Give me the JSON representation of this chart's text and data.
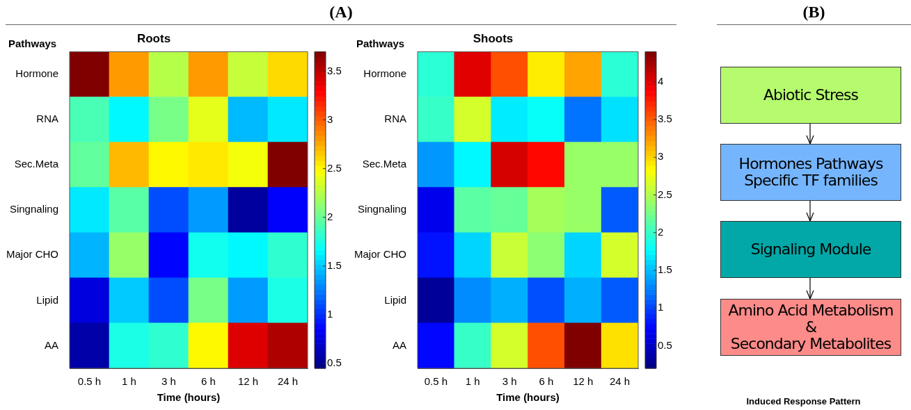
{
  "chart_data": [
    {
      "type": "heatmap",
      "title": "Roots",
      "xlabel": "Time (hours)",
      "ylabel": "Pathways",
      "annotations": [
        "(A)"
      ],
      "categories": [
        "0.5 h",
        "1 h",
        "3 h",
        "6 h",
        "12 h",
        "24 h"
      ],
      "y_categories": [
        "Hormone",
        "RNA",
        "Sec.Meta",
        "Singnaling",
        "Major CHO",
        "Lipid",
        "AA"
      ],
      "cells": [
        [
          3.7,
          2.8,
          2.25,
          2.8,
          2.3,
          2.6
        ],
        [
          1.9,
          1.65,
          2.05,
          2.4,
          1.45,
          1.6
        ],
        [
          1.98,
          2.7,
          2.5,
          2.55,
          2.45,
          3.7
        ],
        [
          1.6,
          1.95,
          1.1,
          1.35,
          0.55,
          0.85
        ],
        [
          1.43,
          2.15,
          0.87,
          1.72,
          1.65,
          1.82
        ],
        [
          0.75,
          1.5,
          1.1,
          2.05,
          1.35,
          1.75
        ],
        [
          0.58,
          1.75,
          1.82,
          2.5,
          3.4,
          3.55
        ]
      ],
      "clim": [
        0.45,
        3.7
      ],
      "cticks": [
        0.5,
        1,
        1.5,
        2,
        2.5,
        3,
        3.5
      ]
    },
    {
      "type": "heatmap",
      "title": "Shoots",
      "xlabel": "Time (hours)",
      "ylabel": "Pathways",
      "categories": [
        "0.5 h",
        "1 h",
        "3 h",
        "6 h",
        "12 h",
        "24 h"
      ],
      "y_categories": [
        "Hormone",
        "RNA",
        "Sec.Meta",
        "Singnaling",
        "Major CHO",
        "Lipid",
        "AA"
      ],
      "cells": [
        [
          1.95,
          4.0,
          3.55,
          2.9,
          3.2,
          1.95
        ],
        [
          2.0,
          2.65,
          1.7,
          1.8,
          1.2,
          1.65
        ],
        [
          1.35,
          1.75,
          4.05,
          3.85,
          2.4,
          2.4
        ],
        [
          0.65,
          2.15,
          2.2,
          2.45,
          2.4,
          1.1
        ],
        [
          0.8,
          1.6,
          2.6,
          2.35,
          1.6,
          2.65
        ],
        [
          0.3,
          1.3,
          1.45,
          1.05,
          1.45,
          1.1
        ],
        [
          0.75,
          2.0,
          2.65,
          3.55,
          4.4,
          2.95
        ]
      ],
      "clim": [
        0.2,
        4.4
      ],
      "cticks": [
        0.5,
        1,
        1.5,
        2,
        2.5,
        3,
        3.5,
        4
      ]
    },
    {
      "type": "other",
      "title": "(B)",
      "xlabel": "Induced Response Pattern",
      "annotations": [
        "Abiotic Stress",
        "Hormones Pathways\nSpecific TF families",
        "Signaling Module",
        "Amino Acid Metabolism &\nSecondary Metabolites"
      ],
      "colors": [
        "#b5fb6d",
        "#75b5fd",
        "#02a8a8",
        "#fc8b89"
      ]
    }
  ]
}
